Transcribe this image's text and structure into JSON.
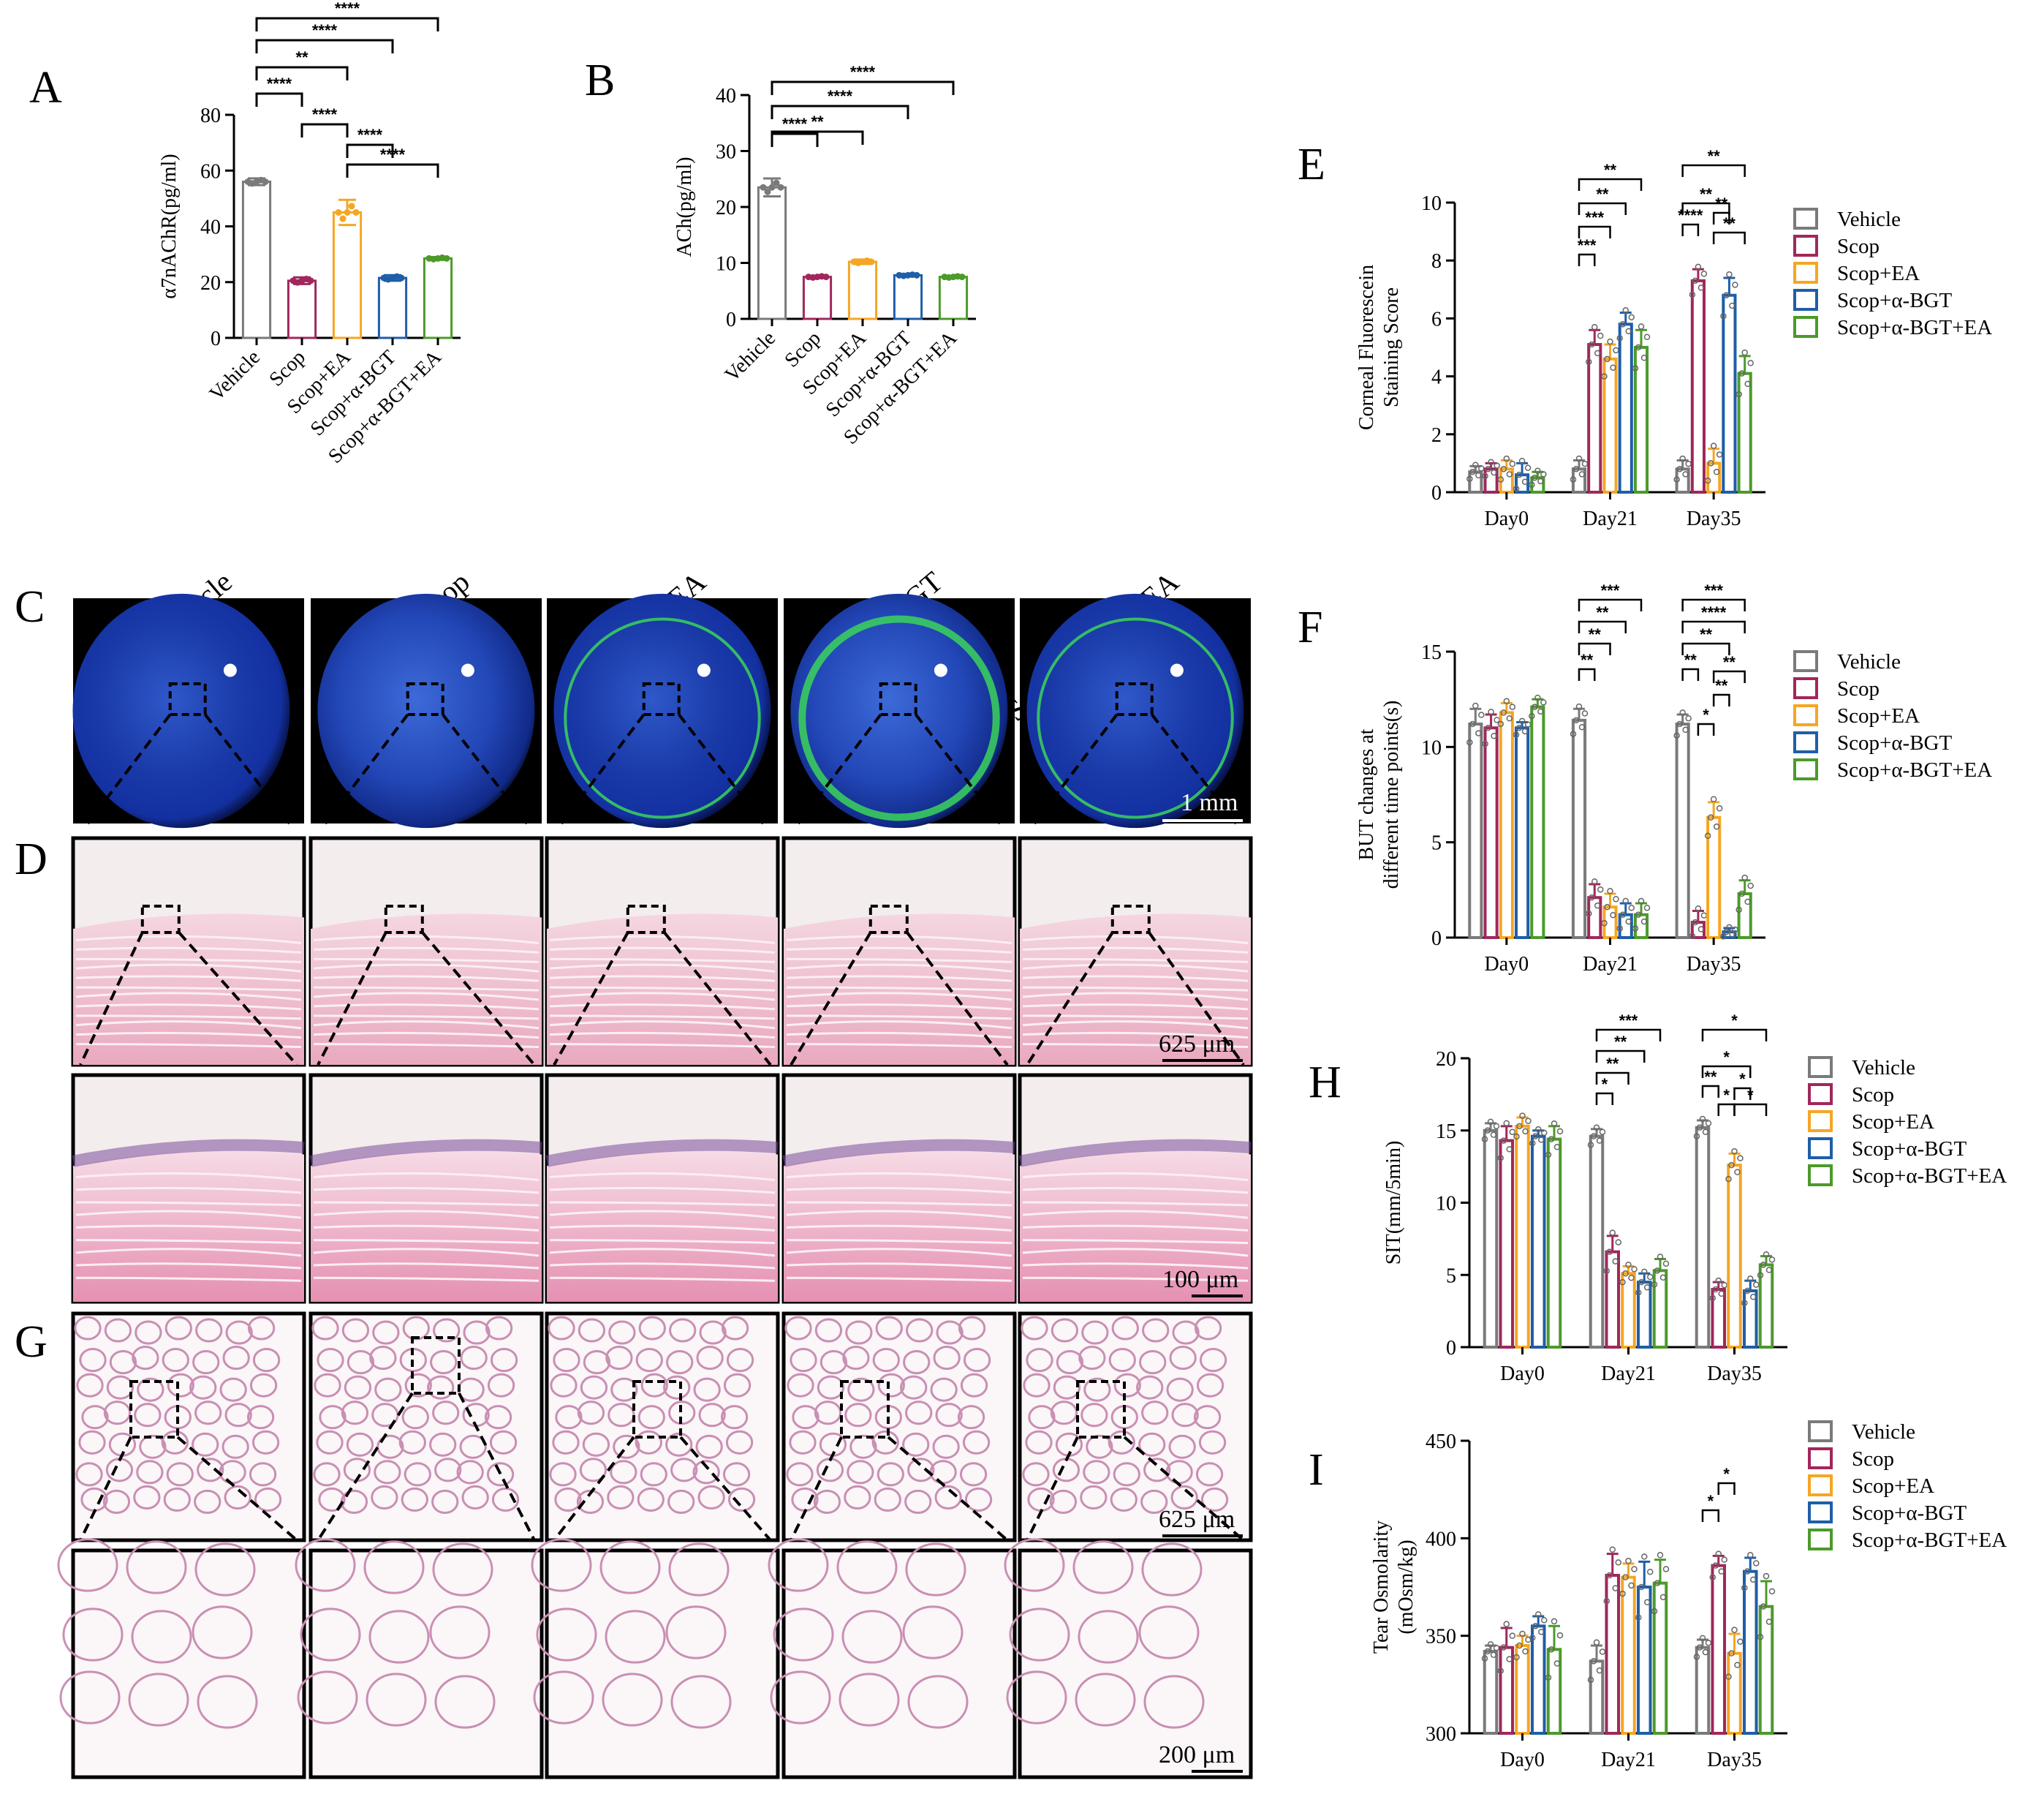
{
  "colors": {
    "Vehicle": "#7a7a7a",
    "Scop": "#a0275c",
    "Scop+EA": "#f5a623",
    "Scop+α-BGT": "#1f5ea8",
    "Scop+α-BGT+EA": "#4c9a2a"
  },
  "groups": [
    "Vehicle",
    "Scop",
    "Scop+EA",
    "Scop+α-BGT",
    "Scop+α-BGT+EA"
  ],
  "panels": {
    "A": "A",
    "B": "B",
    "C": "C",
    "D": "D",
    "E": "E",
    "F": "F",
    "G": "G",
    "H": "H",
    "I": "I"
  },
  "column_labels": [
    "Vehicle",
    "Scop",
    "Scop+EA",
    "Scop+α-BGT",
    "Scop+α-BGT+EA"
  ],
  "scale_bars": {
    "C": "1 mm",
    "D_top": "625 μm",
    "D_bottom": "100 μm",
    "G_top": "625 μm",
    "G_bottom": "200 μm"
  },
  "chart_data": [
    {
      "id": "A",
      "type": "bar",
      "categories": [
        "Vehicle",
        "Scop",
        "Scop+EA",
        "Scop+α-BGT",
        "Scop+α-BGT+EA"
      ],
      "values": [
        56,
        20.5,
        45,
        21.5,
        28.5
      ],
      "errors": [
        1.2,
        1.2,
        4.5,
        1.0,
        0.5
      ],
      "ylabel": "α7nAChR(pg/ml)",
      "ylim": [
        0,
        80
      ],
      "yticks": [
        0,
        20,
        40,
        60,
        80
      ],
      "significance": [
        {
          "a": 0,
          "b": 1,
          "label": "****"
        },
        {
          "a": 1,
          "b": 2,
          "label": "****"
        },
        {
          "a": 0,
          "b": 2,
          "label": "**"
        },
        {
          "a": 0,
          "b": 3,
          "label": "****"
        },
        {
          "a": 0,
          "b": 4,
          "label": "****"
        },
        {
          "a": 2,
          "b": 3,
          "label": "****"
        },
        {
          "a": 2,
          "b": 4,
          "label": "****"
        }
      ]
    },
    {
      "id": "B",
      "type": "bar",
      "categories": [
        "Vehicle",
        "Scop",
        "Scop+EA",
        "Scop+α-BGT",
        "Scop+α-BGT+EA"
      ],
      "values": [
        23.5,
        7.5,
        10.2,
        7.8,
        7.5
      ],
      "errors": [
        1.6,
        0.2,
        0.4,
        0.2,
        0.2
      ],
      "ylabel": "ACh(pg/ml)",
      "ylim": [
        0,
        40
      ],
      "yticks": [
        0,
        10,
        20,
        30,
        40
      ],
      "significance": [
        {
          "a": 0,
          "b": 1,
          "label": "****"
        },
        {
          "a": 0,
          "b": 2,
          "label": "**"
        },
        {
          "a": 0,
          "b": 3,
          "label": "****"
        },
        {
          "a": 0,
          "b": 4,
          "label": "****"
        }
      ]
    },
    {
      "id": "E",
      "type": "bar",
      "categories": [
        "Day0",
        "Day21",
        "Day35"
      ],
      "series": [
        {
          "name": "Vehicle",
          "values": [
            0.7,
            0.8,
            0.8
          ],
          "errors": [
            0.2,
            0.3,
            0.3
          ]
        },
        {
          "name": "Scop",
          "values": [
            0.8,
            5.1,
            7.3
          ],
          "errors": [
            0.2,
            0.5,
            0.4
          ]
        },
        {
          "name": "Scop+EA",
          "values": [
            0.8,
            4.6,
            1.0
          ],
          "errors": [
            0.3,
            0.5,
            0.5
          ]
        },
        {
          "name": "Scop+α-BGT",
          "values": [
            0.6,
            5.8,
            6.8
          ],
          "errors": [
            0.4,
            0.4,
            0.6
          ]
        },
        {
          "name": "Scop+α-BGT+EA",
          "values": [
            0.5,
            5.0,
            4.1
          ],
          "errors": [
            0.2,
            0.6,
            0.6
          ]
        }
      ],
      "ylabel": "Corneal Fluorescein Staining Score",
      "ylim": [
        0,
        10
      ],
      "yticks": [
        0,
        2,
        4,
        6,
        8,
        10
      ],
      "significance": [
        {
          "g": 1,
          "a": 0,
          "b": 1,
          "label": "***"
        },
        {
          "g": 1,
          "a": 0,
          "b": 2,
          "label": "***"
        },
        {
          "g": 1,
          "a": 0,
          "b": 3,
          "label": "**"
        },
        {
          "g": 1,
          "a": 0,
          "b": 4,
          "label": "**"
        },
        {
          "g": 2,
          "a": 0,
          "b": 1,
          "label": "****"
        },
        {
          "g": 2,
          "a": 0,
          "b": 3,
          "label": "**"
        },
        {
          "g": 2,
          "a": 0,
          "b": 4,
          "label": "**"
        },
        {
          "g": 2,
          "a": 2,
          "b": 3,
          "label": "**"
        },
        {
          "g": 2,
          "a": 2,
          "b": 4,
          "label": "**"
        }
      ]
    },
    {
      "id": "F",
      "type": "bar",
      "categories": [
        "Day0",
        "Day21",
        "Day35"
      ],
      "series": [
        {
          "name": "Vehicle",
          "values": [
            11.2,
            11.4,
            11.2
          ],
          "errors": [
            0.8,
            0.6,
            0.5
          ]
        },
        {
          "name": "Scop",
          "values": [
            11.0,
            2.1,
            0.8
          ],
          "errors": [
            0.7,
            0.7,
            0.6
          ]
        },
        {
          "name": "Scop+EA",
          "values": [
            11.8,
            1.6,
            6.3
          ],
          "errors": [
            0.5,
            0.7,
            0.8
          ]
        },
        {
          "name": "Scop+α-BGT",
          "values": [
            11.0,
            1.2,
            0.3
          ],
          "errors": [
            0.3,
            0.6,
            0.2
          ]
        },
        {
          "name": "Scop+α-BGT+EA",
          "values": [
            12.1,
            1.2,
            2.3
          ],
          "errors": [
            0.4,
            0.6,
            0.7
          ]
        }
      ],
      "ylabel": "BUT changes at different time points(s)",
      "ylim": [
        0,
        15
      ],
      "yticks": [
        0,
        5,
        10,
        15
      ],
      "significance": [
        {
          "g": 1,
          "a": 0,
          "b": 1,
          "label": "**"
        },
        {
          "g": 1,
          "a": 0,
          "b": 2,
          "label": "**"
        },
        {
          "g": 1,
          "a": 0,
          "b": 3,
          "label": "**"
        },
        {
          "g": 1,
          "a": 0,
          "b": 4,
          "label": "***"
        },
        {
          "g": 2,
          "a": 0,
          "b": 1,
          "label": "**"
        },
        {
          "g": 2,
          "a": 0,
          "b": 3,
          "label": "**"
        },
        {
          "g": 2,
          "a": 0,
          "b": 4,
          "label": "****"
        },
        {
          "g": 2,
          "a": 0,
          "b": 4,
          "label": "***"
        },
        {
          "g": 2,
          "a": 1,
          "b": 2,
          "label": "*"
        },
        {
          "g": 2,
          "a": 2,
          "b": 3,
          "label": "**"
        },
        {
          "g": 2,
          "a": 2,
          "b": 4,
          "label": "**"
        }
      ]
    },
    {
      "id": "H",
      "type": "bar",
      "categories": [
        "Day0",
        "Day21",
        "Day35"
      ],
      "series": [
        {
          "name": "Vehicle",
          "values": [
            15.0,
            14.6,
            15.2
          ],
          "errors": [
            0.5,
            0.5,
            0.5
          ]
        },
        {
          "name": "Scop",
          "values": [
            14.3,
            6.6,
            4.0
          ],
          "errors": [
            1.0,
            1.1,
            0.5
          ]
        },
        {
          "name": "Scop+EA",
          "values": [
            15.3,
            5.1,
            12.6
          ],
          "errors": [
            0.6,
            0.5,
            0.8
          ]
        },
        {
          "name": "Scop+α-BGT",
          "values": [
            14.6,
            4.5,
            3.9
          ],
          "errors": [
            0.4,
            0.6,
            0.7
          ]
        },
        {
          "name": "Scop+α-BGT+EA",
          "values": [
            14.4,
            5.3,
            5.7
          ],
          "errors": [
            0.9,
            0.8,
            0.6
          ]
        }
      ],
      "ylabel": "SIT(mm/5min)",
      "ylim": [
        0,
        20
      ],
      "yticks": [
        0,
        5,
        10,
        15,
        20
      ],
      "significance": [
        {
          "g": 1,
          "a": 0,
          "b": 1,
          "label": "*"
        },
        {
          "g": 1,
          "a": 0,
          "b": 2,
          "label": "**"
        },
        {
          "g": 1,
          "a": 0,
          "b": 3,
          "label": "**"
        },
        {
          "g": 1,
          "a": 0,
          "b": 4,
          "label": "***"
        },
        {
          "g": 2,
          "a": 0,
          "b": 1,
          "label": "**"
        },
        {
          "g": 2,
          "a": 0,
          "b": 3,
          "label": "*"
        },
        {
          "g": 2,
          "a": 0,
          "b": 4,
          "label": "*"
        },
        {
          "g": 2,
          "a": 1,
          "b": 2,
          "label": "*"
        },
        {
          "g": 2,
          "a": 2,
          "b": 3,
          "label": "*"
        },
        {
          "g": 2,
          "a": 2,
          "b": 4,
          "label": "*"
        }
      ]
    },
    {
      "id": "I",
      "type": "bar",
      "categories": [
        "Day0",
        "Day21",
        "Day35"
      ],
      "series": [
        {
          "name": "Vehicle",
          "values": [
            342,
            337,
            344
          ],
          "errors": [
            3,
            8,
            4
          ]
        },
        {
          "name": "Scop",
          "values": [
            344,
            381,
            386
          ],
          "errors": [
            10,
            11,
            5
          ]
        },
        {
          "name": "Scop+EA",
          "values": [
            345,
            380,
            341
          ],
          "errors": [
            5,
            7,
            10
          ]
        },
        {
          "name": "Scop+α-BGT",
          "values": [
            355,
            375,
            383
          ],
          "errors": [
            5,
            13,
            7
          ]
        },
        {
          "name": "Scop+α-BGT+EA",
          "values": [
            343,
            377,
            365
          ],
          "errors": [
            12,
            12,
            13
          ]
        }
      ],
      "ylabel": "Tear Osmolarity (mOsm/kg)",
      "ylim": [
        300,
        450
      ],
      "yticks": [
        300,
        350,
        400,
        450
      ],
      "significance": [
        {
          "g": 2,
          "a": 0,
          "b": 1,
          "label": "*"
        },
        {
          "g": 2,
          "a": 1,
          "b": 2,
          "label": "*"
        }
      ]
    }
  ]
}
